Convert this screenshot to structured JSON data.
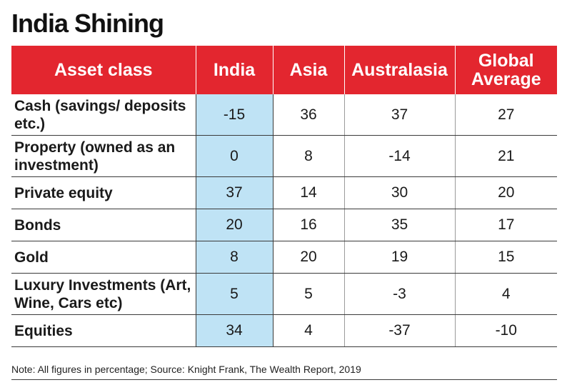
{
  "title": "India Shining",
  "table": {
    "headers": [
      "Asset class",
      "India",
      "Asia",
      "Australasia",
      "Global Average"
    ],
    "rows": [
      {
        "label": "Cash (savings/ deposits etc.)",
        "values": [
          "-15",
          "36",
          "37",
          "27"
        ]
      },
      {
        "label": "Property (owned as an investment)",
        "values": [
          "0",
          "8",
          "-14",
          "21"
        ]
      },
      {
        "label": "Private equity",
        "values": [
          "37",
          "14",
          "30",
          "20"
        ]
      },
      {
        "label": "Bonds",
        "values": [
          "20",
          "16",
          "35",
          "17"
        ]
      },
      {
        "label": "Gold",
        "values": [
          "8",
          "20",
          "19",
          "15"
        ]
      },
      {
        "label": "Luxury Investments (Art, Wine, Cars etc)",
        "values": [
          "5",
          "5",
          "-3",
          "4"
        ]
      },
      {
        "label": "Equities",
        "values": [
          "34",
          "4",
          "-37",
          "-10"
        ]
      }
    ]
  },
  "note": "Note: All figures in percentage;  Source: Knight Frank, The Wealth Report, 2019",
  "colors": {
    "header_bg": "#e3262f",
    "india_highlight": "#bfe3f5"
  }
}
